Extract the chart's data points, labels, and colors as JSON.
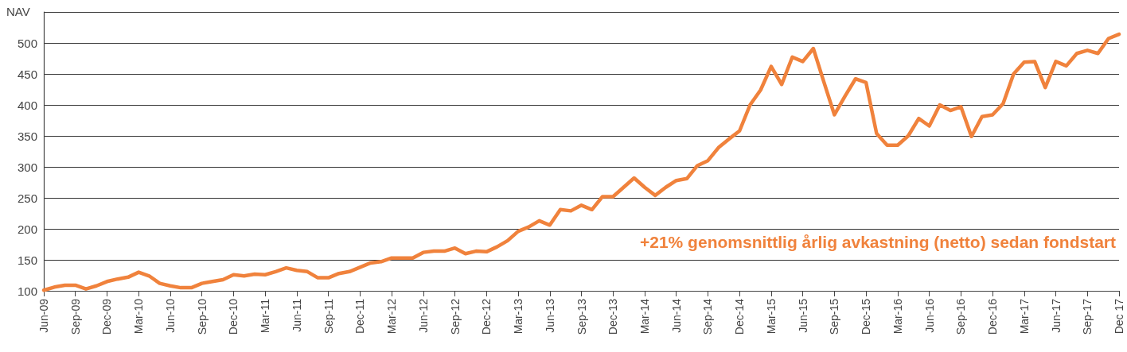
{
  "chart_data": {
    "type": "line",
    "ylabel": "NAV",
    "annotations": [
      "+21% genomsnittlig årlig avkastning (netto) sedan fondstart"
    ],
    "categories": [
      "Jun-09",
      null,
      null,
      "Sep-09",
      null,
      null,
      "Dec-09",
      null,
      null,
      "Mar-10",
      null,
      null,
      "Jun-10",
      null,
      null,
      "Sep-10",
      null,
      null,
      "Dec-10",
      null,
      null,
      "Mar-11",
      null,
      null,
      "Jun-11",
      null,
      null,
      "Sep-11",
      null,
      null,
      "Dec-11",
      null,
      null,
      "Mar-12",
      null,
      null,
      "Jun-12",
      null,
      null,
      "Sep-12",
      null,
      null,
      "Dec-12",
      null,
      null,
      "Mar-13",
      null,
      null,
      "Jun-13",
      null,
      null,
      "Sep-13",
      null,
      null,
      "Dec-13",
      null,
      null,
      "Mar-14",
      null,
      null,
      "Jun-14",
      null,
      null,
      "Sep-14",
      null,
      null,
      "Dec-14",
      null,
      null,
      "Mar-15",
      null,
      null,
      "Jun-15",
      null,
      null,
      "Sep-15",
      null,
      null,
      "Dec-15",
      null,
      null,
      "Mar-16",
      null,
      null,
      "Jun-16",
      null,
      null,
      "Sep-16",
      null,
      null,
      "Dec-16",
      null,
      null,
      "Mar-17",
      null,
      null,
      "Jun-17",
      null,
      null,
      "Sep-17",
      null,
      null,
      "Dec 17"
    ],
    "series": [
      {
        "color": "#f0823c",
        "values": [
          101,
          106,
          109,
          109,
          103,
          108,
          115,
          119,
          122,
          130,
          124,
          112,
          108,
          105,
          105,
          112,
          115,
          118,
          126,
          124,
          127,
          126,
          131,
          137,
          133,
          131,
          121,
          121,
          128,
          131,
          138,
          145,
          147,
          153,
          153,
          153,
          162,
          164,
          164,
          169,
          160,
          164,
          163,
          171,
          181,
          196,
          203,
          213,
          206,
          231,
          229,
          238,
          231,
          252,
          252,
          267,
          282,
          267,
          254,
          267,
          278,
          281,
          302,
          310,
          331,
          345,
          358,
          400,
          424,
          462,
          433,
          477,
          470,
          491,
          437,
          384,
          414,
          442,
          436,
          354,
          335,
          335,
          350,
          378,
          366,
          400,
          391,
          397,
          349,
          381,
          384,
          402,
          450,
          469,
          470,
          428,
          470,
          463,
          483,
          488,
          483,
          507,
          514
        ]
      }
    ],
    "ylim": [
      100,
      550
    ],
    "yticks": [
      100,
      150,
      200,
      250,
      300,
      350,
      400,
      450,
      500,
      {
        "value": 550,
        "label": null
      }
    ],
    "grid": "y",
    "marker": "none",
    "line_style": "solid"
  }
}
